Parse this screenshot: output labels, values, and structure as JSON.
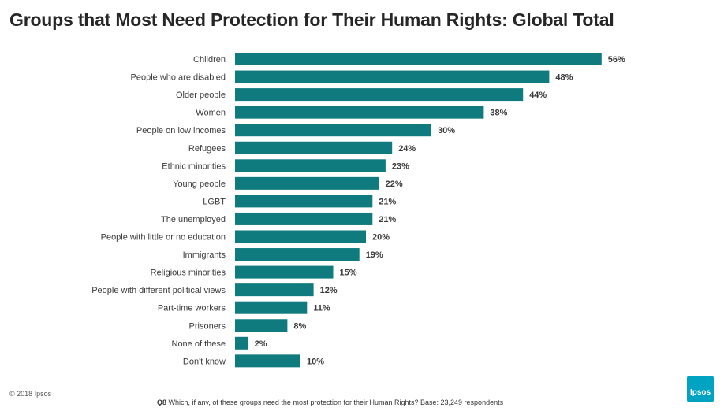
{
  "header": {
    "title": "Groups that Most Need Protection for Their Human Rights: Global Total"
  },
  "chart_data": {
    "type": "bar",
    "orientation": "horizontal",
    "title": "Groups that Most Need Protection for Their Human Rights: Global Total",
    "categories": [
      "Children",
      "People who are disabled",
      "Older people",
      "Women",
      "People on low incomes",
      "Refugees",
      "Ethnic minorities",
      "Young people",
      "LGBT",
      "The unemployed",
      "People with little or no education",
      "Immigrants",
      "Religious minorities",
      "People with different political views",
      "Part-time workers",
      "Prisoners",
      "None of these",
      "Don't know"
    ],
    "values": [
      56,
      48,
      44,
      38,
      30,
      24,
      23,
      22,
      21,
      21,
      20,
      19,
      15,
      12,
      11,
      8,
      2,
      10
    ],
    "value_labels": [
      "56%",
      "48%",
      "44%",
      "38%",
      "30%",
      "24%",
      "23%",
      "22%",
      "21%",
      "21%",
      "20%",
      "19%",
      "15%",
      "12%",
      "11%",
      "8%",
      "2%",
      "10%"
    ],
    "unit": "%",
    "bar_color": "#0f7b7e",
    "grid": false,
    "legend": "none"
  },
  "footer": {
    "copyright": "© 2018 Ipsos",
    "question_label": "Q8",
    "question_text": " Which, if any, of these groups need the most protection for their Human Rights? Base: 23,249 respondents",
    "logo_text": "Ipsos",
    "logo_color": "#00a3c2"
  }
}
